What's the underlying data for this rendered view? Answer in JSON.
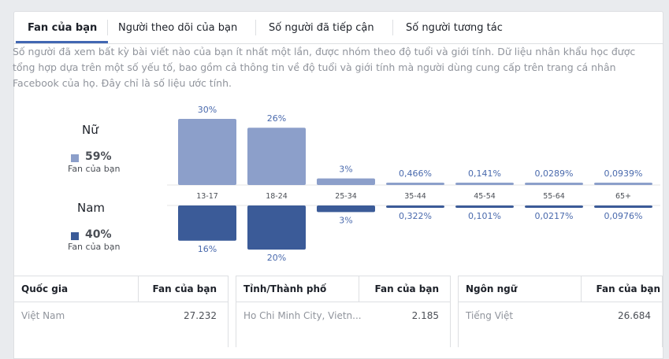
{
  "tabs": [
    "Fan của bạn",
    "Người theo dõi của bạn",
    "Số người đã tiếp cận",
    "Số người tương tác"
  ],
  "description": "Số người đã xem bất kỳ bài viết nào của bạn ít nhất một lần, được nhóm theo độ tuổi và giới tính. Dữ liệu nhân khẩu học được tổng hợp dựa trên một số yếu tố, bao gồm cả thông tin về độ tuổi và giới tính mà người dùng cung cấp trên trang cá nhân Facebook của họ. Đây chỉ là số liệu ước tính.",
  "female": {
    "label": "Nữ",
    "percent": "59%",
    "sub": "Fan của bạn",
    "color": "#8c9fca"
  },
  "male": {
    "label": "Nam",
    "percent": "40%",
    "sub": "Fan của bạn",
    "color": "#3b5b98"
  },
  "chart_data": {
    "type": "bar",
    "categories": [
      "13-17",
      "18-24",
      "25-34",
      "35-44",
      "45-54",
      "55-64",
      "65+"
    ],
    "series": [
      {
        "name": "Nữ",
        "values": [
          30,
          26,
          3,
          0.466,
          0.141,
          0.0289,
          0.0939
        ],
        "labels": [
          "30%",
          "26%",
          "3%",
          "0,466%",
          "0,141%",
          "0,0289%",
          "0,0939%"
        ]
      },
      {
        "name": "Nam",
        "values": [
          16,
          20,
          3,
          0.322,
          0.101,
          0.0217,
          0.0976
        ],
        "labels": [
          "16%",
          "20%",
          "3%",
          "0,322%",
          "0,101%",
          "0,0217%",
          "0,0976%"
        ]
      }
    ]
  },
  "tables": [
    {
      "col1": "Quốc gia",
      "col2": "Fan của bạn",
      "row": {
        "name": "Việt Nam",
        "value": "27.232"
      }
    },
    {
      "col1": "Tỉnh/Thành phố",
      "col2": "Fan của bạn",
      "row": {
        "name": "Ho Chi Minh City, Vietn...",
        "value": "2.185"
      }
    },
    {
      "col1": "Ngôn ngữ",
      "col2": "Fan của bạn",
      "row": {
        "name": "Tiếng Việt",
        "value": "26.684"
      }
    }
  ]
}
